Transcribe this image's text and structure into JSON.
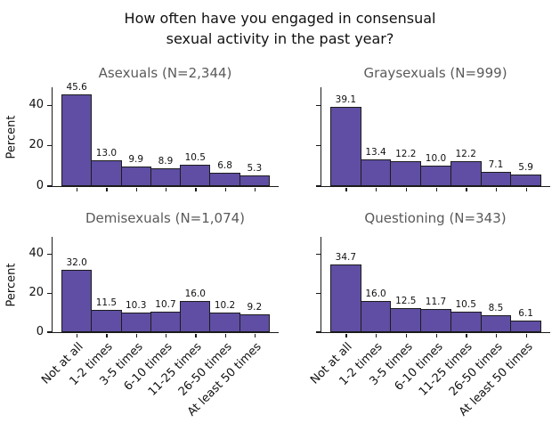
{
  "figure": {
    "title": "How often have you engaged in consensual\nsexual activity in the past year?"
  },
  "colors": {
    "background": "#ffffff",
    "text": "#111111",
    "axis": "#1a1a1a",
    "subplot_title": "#5a5a5a",
    "bar_fill": "#5f4ea3",
    "bar_edge": "#1c1c1c"
  },
  "chart_data": {
    "type": "bar",
    "categories": [
      "Not at all",
      "1-2 times",
      "3-5 times",
      "6-10 times",
      "11-25 times",
      "26-50 times",
      "At least 50 times"
    ],
    "xlabel": "",
    "ylabel": "Percent",
    "ylim": [
      0,
      49
    ],
    "yticks": [
      0,
      20,
      40
    ],
    "grid": false,
    "legend": "none",
    "value_labels": true,
    "series": [
      {
        "name": "Asexuals (N=2,344)",
        "values": [
          45.6,
          13.0,
          9.9,
          8.9,
          10.5,
          6.8,
          5.3
        ]
      },
      {
        "name": "Graysexuals (N=999)",
        "values": [
          39.1,
          13.4,
          12.2,
          10.0,
          12.2,
          7.1,
          5.9
        ]
      },
      {
        "name": "Demisexuals (N=1,074)",
        "values": [
          32.0,
          11.5,
          10.3,
          10.7,
          16.0,
          10.2,
          9.2
        ]
      },
      {
        "name": "Questioning (N=343)",
        "values": [
          34.7,
          16.0,
          12.5,
          11.7,
          10.5,
          8.5,
          6.1
        ]
      }
    ]
  }
}
